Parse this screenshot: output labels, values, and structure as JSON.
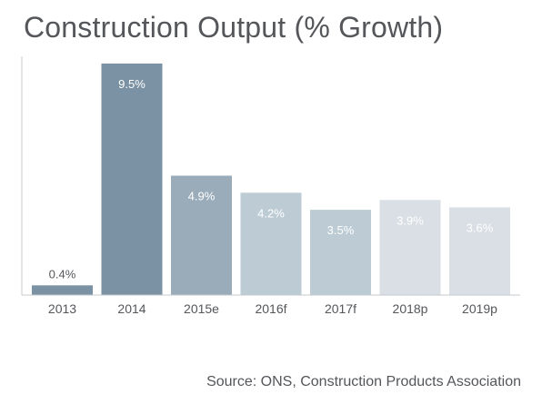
{
  "chart_data": {
    "type": "bar",
    "title": "Construction Output (% Growth)",
    "categories": [
      "2013",
      "2014",
      "2015e",
      "2016f",
      "2017f",
      "2018p",
      "2019p"
    ],
    "values": [
      0.4,
      9.5,
      4.9,
      4.2,
      3.5,
      3.9,
      3.6
    ],
    "data_labels": [
      "0.4%",
      "9.5%",
      "4.9%",
      "4.2%",
      "3.5%",
      "3.9%",
      "3.6%"
    ],
    "bar_colors": [
      "#7a92a3",
      "#7a92a3",
      "#9aacb9",
      "#bccbd4",
      "#bccbd4",
      "#d9dfe4",
      "#d9dfe4"
    ],
    "label_inside": [
      false,
      true,
      true,
      true,
      true,
      true,
      true
    ],
    "xlabel": "",
    "ylabel": "",
    "ylim": [
      0,
      9.5
    ],
    "grid": false,
    "legend": "none"
  },
  "source": "Source: ONS, Construction Products Association"
}
